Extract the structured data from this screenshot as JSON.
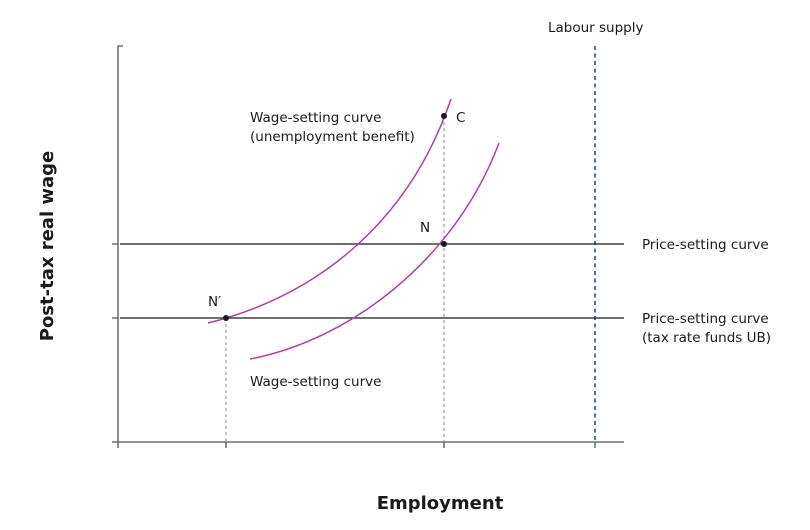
{
  "axes": {
    "x_label": "Employment",
    "y_label": "Post-tax real wage"
  },
  "labels": {
    "labour_supply": "Labour supply",
    "price_setting": "Price-setting curve",
    "price_setting_tax_line1": "Price-setting curve",
    "price_setting_tax_line2": "(tax rate funds UB)",
    "wage_setting_ub_line1": "Wage-setting curve",
    "wage_setting_ub_line2": "(unemployment benefit)",
    "wage_setting": "Wage-setting curve"
  },
  "points": {
    "C": "C",
    "N": "N",
    "N_prime": "N′"
  },
  "colors": {
    "curve": "#b23bb3",
    "supply": "#2a4f8f",
    "axis": "#555555",
    "text": "#1a1a1a"
  }
}
